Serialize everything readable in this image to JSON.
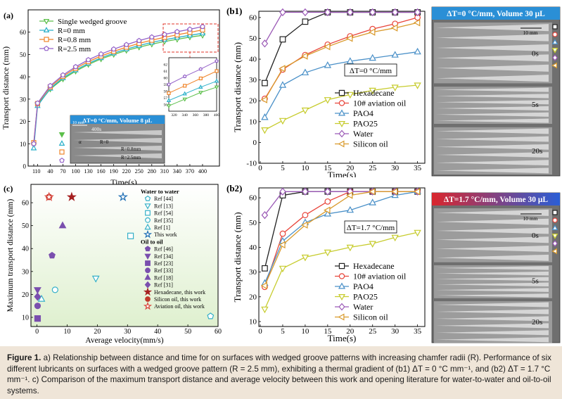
{
  "caption": {
    "label": "Figure 1.",
    "text": "a) Relationship between distance and time for on surfaces with wedged groove patterns with increasing chamfer radii (R). Performance of six different lubricants on surfaces with a wedged groove pattern (R = 2.5 mm), exhibiting a thermal gradient of (b1) ΔT = 0 °C mm⁻¹, and (b2) ΔT = 1.7 °C mm⁻¹. c) Comparison of the maximum transport distance and average velocity between this work and opening literature for water-to-water and oil-to-oil systems."
  },
  "chart_data": [
    {
      "id": "a",
      "panel_label": "(a)",
      "type": "line",
      "xlabel": "Time(s)",
      "ylabel": "Transport distance (mm)",
      "x": [
        1,
        10,
        40,
        70,
        100,
        130,
        160,
        190,
        220,
        250,
        280,
        310,
        340,
        370,
        400
      ],
      "xlim": [
        1,
        430
      ],
      "ylim": [
        0,
        70
      ],
      "x_ticks": [
        1,
        10,
        40,
        70,
        100,
        130,
        160,
        190,
        220,
        250,
        280,
        310,
        340,
        370,
        400
      ],
      "y_ticks": [
        0,
        10,
        20,
        30,
        40,
        50,
        60
      ],
      "legend_position": "top-left",
      "series": [
        {
          "name": "Single wedged groove",
          "color": "#5cbf4a",
          "marker": "tri-down",
          "values": [
            9.5,
            27.5,
            34.5,
            39.0,
            42.5,
            45.5,
            48.0,
            50.0,
            51.8,
            53.3,
            54.6,
            55.8,
            56.8,
            57.8,
            58.6
          ]
        },
        {
          "name": "R=0 mm",
          "color": "#2ab0c9",
          "marker": "tri-up",
          "values": [
            8.0,
            27.0,
            34.8,
            39.5,
            43.0,
            46.0,
            48.5,
            50.6,
            52.4,
            54.0,
            55.4,
            56.6,
            57.6,
            58.6,
            59.5
          ]
        },
        {
          "name": "R=0.8 mm",
          "color": "#f0852b",
          "marker": "square",
          "values": [
            10.5,
            28.0,
            35.5,
            40.2,
            43.8,
            46.8,
            49.3,
            51.4,
            53.3,
            55.0,
            56.4,
            57.7,
            58.8,
            59.9,
            61.0
          ]
        },
        {
          "name": "R=2.5 mm",
          "color": "#9462c9",
          "marker": "pentagon",
          "values": [
            10.0,
            28.2,
            36.0,
            40.8,
            44.5,
            47.6,
            50.2,
            52.4,
            54.4,
            56.2,
            57.8,
            59.0,
            60.2,
            61.3,
            62.5
          ]
        }
      ],
      "inset": {
        "xlim": [
          310,
          400
        ],
        "ylim": [
          55,
          63
        ],
        "x_ticks": [
          320,
          340,
          360,
          380,
          400
        ],
        "y_ticks": [
          56,
          57,
          58,
          59,
          60,
          61,
          62
        ]
      },
      "photo_label": "ΔT=0 °C/mm, Volume 8 μL",
      "photo_texts": {
        "scale": "10 mm",
        "time": "400s",
        "alpha": "α",
        "r0": "R=0",
        "r08": "R=0.8mm",
        "r25": "R=2.5mm"
      }
    },
    {
      "id": "b1",
      "panel_label": "(b1)",
      "type": "line",
      "xlabel": "Time(s)",
      "ylabel": "Transport distance (mm)",
      "x": [
        1,
        5,
        10,
        15,
        20,
        25,
        30,
        35
      ],
      "xlim": [
        0,
        36
      ],
      "ylim": [
        -10,
        63
      ],
      "x_ticks": [
        0,
        5,
        10,
        15,
        20,
        25,
        30,
        35
      ],
      "y_ticks": [
        -10,
        0,
        10,
        20,
        30,
        40,
        50,
        60
      ],
      "annotation": "ΔT=0 °C/mm",
      "legend_position": "bottom-right",
      "series": [
        {
          "name": "Hexadecane",
          "color": "#222222",
          "marker": "square",
          "values": [
            28.5,
            49.5,
            58.0,
            62.5,
            62.5,
            62.5,
            62.5,
            62.5
          ]
        },
        {
          "name": "10# aviation oil",
          "color": "#e8443a",
          "marker": "circle",
          "values": [
            21.0,
            35.0,
            42.0,
            47.0,
            51.0,
            54.5,
            57.0,
            60.0
          ]
        },
        {
          "name": "PAO4",
          "color": "#4a90c8",
          "marker": "tri-up",
          "values": [
            12.0,
            27.5,
            33.5,
            37.0,
            39.0,
            40.5,
            42.0,
            43.5
          ]
        },
        {
          "name": "PAO25",
          "color": "#c7cc2e",
          "marker": "tri-down",
          "values": [
            6.0,
            10.5,
            15.5,
            20.5,
            23.0,
            25.0,
            26.5,
            27.5
          ]
        },
        {
          "name": "Water",
          "color": "#9b59b6",
          "marker": "diamond",
          "values": [
            47.5,
            62.5,
            62.5,
            62.5,
            62.5,
            62.5,
            62.5,
            62.5
          ]
        },
        {
          "name": "Silicon oil",
          "color": "#d99a2b",
          "marker": "tri-left",
          "values": [
            20.5,
            35.5,
            41.5,
            46.0,
            50.0,
            53.0,
            55.0,
            57.5
          ]
        }
      ],
      "photo_label": "ΔT=0 °C/mm, Volume 30 μL",
      "photo_texts": {
        "scale": "10 mm",
        "t0": "0s",
        "t5": "5s",
        "t20": "20s"
      }
    },
    {
      "id": "b2",
      "panel_label": "(b2)",
      "type": "line",
      "xlabel": "Time(s)",
      "ylabel": "Transport distance (mm)",
      "x": [
        1,
        5,
        10,
        15,
        20,
        25,
        30,
        35
      ],
      "xlim": [
        0,
        36
      ],
      "ylim": [
        8,
        64
      ],
      "x_ticks": [
        0,
        5,
        10,
        15,
        20,
        25,
        30,
        35
      ],
      "y_ticks": [
        10,
        20,
        30,
        40,
        50,
        60
      ],
      "annotation": "ΔT=1.7 °C/mm",
      "legend_position": "bottom-right",
      "series": [
        {
          "name": "Hexadecane",
          "color": "#222222",
          "marker": "square",
          "values": [
            31.5,
            61.0,
            62.5,
            62.5,
            62.5,
            62.5,
            62.5,
            62.5
          ]
        },
        {
          "name": "10# aviation oil",
          "color": "#e8443a",
          "marker": "circle",
          "values": [
            24.0,
            45.5,
            53.0,
            58.5,
            62.5,
            62.5,
            62.5,
            62.5
          ]
        },
        {
          "name": "PAO4",
          "color": "#4a90c8",
          "marker": "tri-up",
          "values": [
            25.5,
            42.5,
            50.0,
            53.5,
            55.0,
            58.0,
            61.0,
            62.5
          ]
        },
        {
          "name": "PAO25",
          "color": "#c7cc2e",
          "marker": "tri-down",
          "values": [
            15.0,
            31.5,
            36.0,
            38.0,
            40.0,
            41.5,
            44.0,
            46.0
          ]
        },
        {
          "name": "Water",
          "color": "#9b59b6",
          "marker": "diamond",
          "values": [
            53.0,
            62.5,
            62.5,
            62.5,
            62.5,
            62.5,
            62.5,
            62.5
          ]
        },
        {
          "name": "Silicon oil",
          "color": "#d99a2b",
          "marker": "tri-left",
          "values": [
            24.5,
            41.0,
            49.0,
            55.0,
            61.0,
            62.5,
            62.5,
            62.5
          ]
        }
      ],
      "photo_label": "ΔT=1.7 °C/mm, Volume 30 μL",
      "photo_texts": {
        "scale": "10 mm",
        "t0": "0s",
        "t5": "5s",
        "t20": "20s"
      }
    },
    {
      "id": "c",
      "panel_label": "(c)",
      "type": "scatter",
      "xlabel": "Average velocity(mm/s)",
      "ylabel": "Maximum transport distance (mm)",
      "xlim": [
        -2,
        60
      ],
      "ylim": [
        6,
        68
      ],
      "x_ticks": [
        0,
        10,
        20,
        30,
        40,
        50,
        60
      ],
      "y_ticks": [
        10,
        20,
        30,
        40,
        50,
        60
      ],
      "legend_headers": [
        "Water to water",
        "Oil to oil"
      ],
      "points": [
        {
          "name": "Ref [44]",
          "group": "Water to water",
          "marker": "pentagon-open",
          "color": "#35b0c8",
          "x": 57.5,
          "y": 10.5
        },
        {
          "name": "Ref [13]",
          "group": "Water to water",
          "marker": "tri-down-open",
          "color": "#35b0c8",
          "x": 19.5,
          "y": 27.0
        },
        {
          "name": "Ref [54]",
          "group": "Water to water",
          "marker": "square-open",
          "color": "#35b0c8",
          "x": 31.0,
          "y": 45.5
        },
        {
          "name": "Ref [35]",
          "group": "Water to water",
          "marker": "circle-open",
          "color": "#35b0c8",
          "x": 6.0,
          "y": 22.0
        },
        {
          "name": "Ref [1]",
          "group": "Water to water",
          "marker": "tri-up-open",
          "color": "#35b0c8",
          "x": 1.5,
          "y": 18.0
        },
        {
          "name": "This work",
          "group": "Water to water",
          "marker": "star-open",
          "color": "#1f6fb5",
          "x": 28.5,
          "y": 62.5
        },
        {
          "name": "Ref [46]",
          "group": "Oil to oil",
          "marker": "pentagon",
          "color": "#7a4fae",
          "x": 5.0,
          "y": 37.0
        },
        {
          "name": "Ref [34]",
          "group": "Oil to oil",
          "marker": "tri-down",
          "color": "#7a4fae",
          "x": 0.2,
          "y": 22.0
        },
        {
          "name": "Ref [23]",
          "group": "Oil to oil",
          "marker": "square",
          "color": "#7a4fae",
          "x": 0.2,
          "y": 9.5
        },
        {
          "name": "Ref [33]",
          "group": "Oil to oil",
          "marker": "circle",
          "color": "#7a4fae",
          "x": 0.2,
          "y": 15.0
        },
        {
          "name": "Ref [18]",
          "group": "Oil to oil",
          "marker": "tri-up",
          "color": "#7a4fae",
          "x": 8.5,
          "y": 50.0
        },
        {
          "name": "Ref [31]",
          "group": "Oil to oil",
          "marker": "diamond",
          "color": "#7a4fae",
          "x": 0.2,
          "y": 19.0
        },
        {
          "name": "Hexadecane, this work",
          "group": "Oil to oil",
          "marker": "star",
          "color": "#a52020",
          "x": 11.5,
          "y": 62.5
        },
        {
          "name": "Silicon oil, this work",
          "group": "Oil to oil",
          "marker": "circle",
          "color": "#c0392b",
          "x": 4.0,
          "y": 62.5
        },
        {
          "name": "Aviation oil, this work",
          "group": "Oil to oil",
          "marker": "star-open",
          "color": "#d9443a",
          "x": 4.0,
          "y": 62.5
        }
      ]
    }
  ]
}
